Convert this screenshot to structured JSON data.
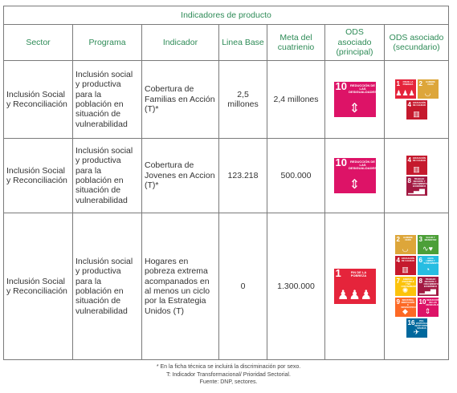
{
  "table": {
    "title": "Indicadores de producto",
    "headers": {
      "sector": "Sector",
      "programa": "Programa",
      "indicador": "Indicador",
      "linea_base": "Linea Base",
      "meta": "Meta del cuatrienio",
      "ods_principal": "ODS asociado (principal)",
      "ods_secundario": "ODS asociado (secundario)"
    },
    "rows": [
      {
        "sector": "Inclusión Social y Reconciliación",
        "programa": "Inclusión social y productiva para la población en situación de vulnerabilidad",
        "indicador": "Cobertura de Familias en Acción (T)*",
        "linea_base": "2,5 millones",
        "meta": "2,4 millones",
        "ods_principal": {
          "number": "10",
          "label": "REDUCCIÓN DE LAS DESIGUALDADES",
          "color": "#dd1367",
          "icon": "equality-icon"
        },
        "ods_secundario": [
          {
            "number": "1",
            "label": "FIN DE LA POBREZA",
            "color": "#e5243b",
            "icon": "family-icon"
          },
          {
            "number": "2",
            "label": "HAMBRE CERO",
            "color": "#dda63a",
            "icon": "bowl-icon"
          },
          {
            "number": "4",
            "label": "EDUCACIÓN DE CALIDAD",
            "color": "#c5192d",
            "icon": "book-icon"
          }
        ]
      },
      {
        "sector": "Inclusión Social y Reconciliación",
        "programa": "Inclusión social y productiva para la población en situación de vulnerabilidad",
        "indicador": "Cobertura de Jovenes en Accion (T)*",
        "linea_base": "123.218",
        "meta": "500.000",
        "ods_principal": {
          "number": "10",
          "label": "REDUCCIÓN DE LAS DESIGUALDADES",
          "color": "#dd1367",
          "icon": "equality-icon"
        },
        "ods_secundario": [
          {
            "number": "4",
            "label": "EDUCACIÓN DE CALIDAD",
            "color": "#c5192d",
            "icon": "book-icon"
          },
          {
            "number": "8",
            "label": "TRABAJO DECENTE Y CRECIMIENTO ECONÓMICO",
            "color": "#a21942",
            "icon": "growth-icon"
          }
        ]
      },
      {
        "sector": "Inclusión Social y Reconciliación",
        "programa": "Inclusión social y productiva para la población en situación de vulnerabilidad",
        "indicador": "Hogares en pobreza extrema acompanados en al menos un ciclo por la Estrategia Unidos (T)",
        "linea_base": "0",
        "meta": "1.300.000",
        "ods_principal": {
          "number": "1",
          "label": "FIN DE LA POBREZA",
          "color": "#e5243b",
          "icon": "family-icon"
        },
        "ods_secundario": [
          {
            "number": "2",
            "label": "HAMBRE CERO",
            "color": "#dda63a",
            "icon": "bowl-icon"
          },
          {
            "number": "3",
            "label": "SALUD Y BIENESTAR",
            "color": "#4c9f38",
            "icon": "heartbeat-icon"
          },
          {
            "number": "4",
            "label": "EDUCACIÓN DE CALIDAD",
            "color": "#c5192d",
            "icon": "book-icon"
          },
          {
            "number": "6",
            "label": "AGUA LIMPIA Y SANEAMIENTO",
            "color": "#26bde2",
            "icon": "water-icon"
          },
          {
            "number": "7",
            "label": "ENERGÍA ASEQUIBLE Y NO CONTAMINANTE",
            "color": "#fcc30b",
            "icon": "sun-icon"
          },
          {
            "number": "8",
            "label": "TRABAJO DECENTE Y CRECIMIENTO ECONÓMICO",
            "color": "#a21942",
            "icon": "growth-icon"
          },
          {
            "number": "9",
            "label": "INDUSTRIA, INNOVACIÓN E INFRAESTRUCTURA",
            "color": "#fd6925",
            "icon": "cubes-icon"
          },
          {
            "number": "10",
            "label": "REDUCCIÓN DE LAS DESIGUALDADES",
            "color": "#dd1367",
            "icon": "equality-icon"
          },
          {
            "number": "16",
            "label": "PAZ, JUSTICIA E INSTITUCIONES SÓLIDAS",
            "color": "#00689d",
            "icon": "dove-icon"
          }
        ]
      }
    ]
  },
  "notes": [
    "* En la ficha técnica se incluirá la discriminación por sexo.",
    "T: Indicador Transformacional/ Prioridad Sectorial.",
    "Fuente: DNP, sectores."
  ],
  "icon_glyphs": {
    "equality-icon": "⇕",
    "family-icon": "♟♟♟",
    "bowl-icon": "◡",
    "book-icon": "▥",
    "growth-icon": "▁▃▅",
    "heartbeat-icon": "∿♥",
    "water-icon": "◔",
    "sun-icon": "✺",
    "cubes-icon": "◆",
    "dove-icon": "✈"
  }
}
